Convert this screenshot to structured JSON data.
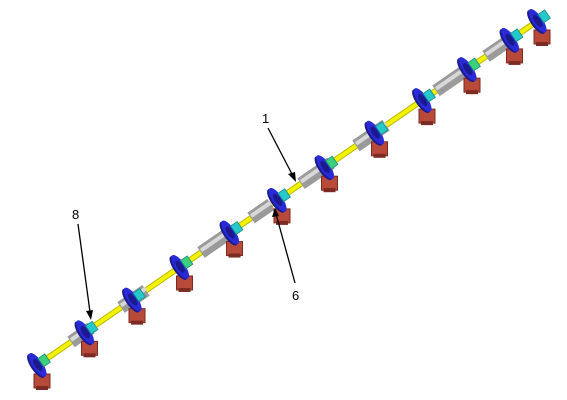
{
  "figure": {
    "callouts": [
      {
        "id": "c1",
        "label": "1"
      },
      {
        "id": "c6",
        "label": "6"
      },
      {
        "id": "c8",
        "label": "8"
      }
    ],
    "colors": {
      "shaft": "#f2f200",
      "shaft_edge": "#b9b900",
      "collar": "#9a9a9a",
      "collar_light": "#d8d8d8",
      "disc": "#2a2ad6",
      "disc_dark": "#1a1a8c",
      "hub": "#26c9c9",
      "hub_green": "#3cd07a",
      "bearing": "#b84a3a",
      "bearing_dark": "#7c2a22",
      "leader": "#000000"
    },
    "components": [
      "bearing-station",
      "bearing-station",
      "bearing-station",
      "bearing-station",
      "bearing-station",
      "bearing-station",
      "bearing-station",
      "bearing-station",
      "bearing-station",
      "bearing-station",
      "bearing-station",
      "bearing-station"
    ]
  }
}
